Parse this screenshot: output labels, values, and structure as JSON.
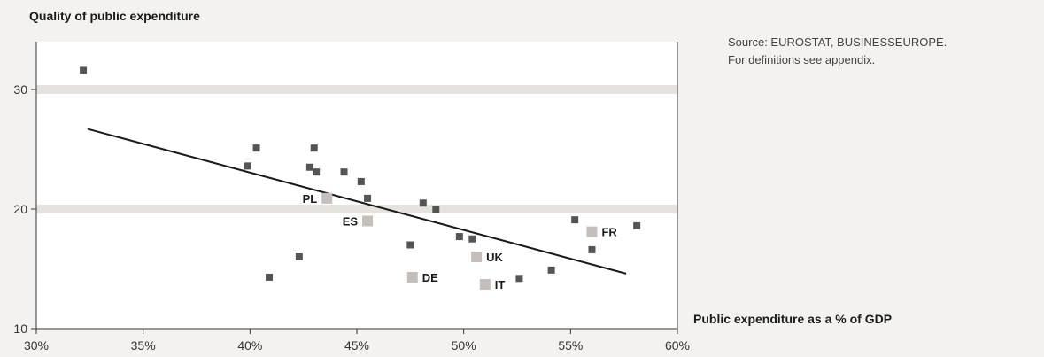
{
  "title": "Quality of public expenditure",
  "source_note": {
    "line1": "Source: EUROSTAT, BUSINESSEUROPE.",
    "line2": "For definitions see appendix."
  },
  "colors": {
    "point": "#555555",
    "highlight": "#c6bebb",
    "band": "#e6e3df",
    "trend": "#1a1a1a",
    "plot_bg": "#ffffff",
    "page_bg": "#f3f2f0"
  },
  "chart_data": {
    "type": "scatter",
    "title": "Quality of public expenditure",
    "xlabel": "Public expenditure as a % of GDP",
    "ylabel": "",
    "xlim": [
      30,
      60
    ],
    "ylim": [
      10,
      34
    ],
    "xticks": [
      "30%",
      "35%",
      "40%",
      "45%",
      "50%",
      "55%",
      "60%"
    ],
    "yticks": [
      "10",
      "20",
      "30"
    ],
    "grid": "horizontal bands at 20 and 30",
    "points": [
      {
        "x": 32.2,
        "y": 31.6
      },
      {
        "x": 39.9,
        "y": 23.6
      },
      {
        "x": 40.3,
        "y": 25.1
      },
      {
        "x": 40.9,
        "y": 14.3
      },
      {
        "x": 42.3,
        "y": 16.0
      },
      {
        "x": 42.8,
        "y": 23.5
      },
      {
        "x": 43.0,
        "y": 25.1
      },
      {
        "x": 43.1,
        "y": 23.1
      },
      {
        "x": 44.4,
        "y": 23.1
      },
      {
        "x": 45.2,
        "y": 22.3
      },
      {
        "x": 45.5,
        "y": 20.9
      },
      {
        "x": 47.5,
        "y": 17.0
      },
      {
        "x": 48.1,
        "y": 20.5
      },
      {
        "x": 48.7,
        "y": 20.0
      },
      {
        "x": 49.8,
        "y": 17.7
      },
      {
        "x": 50.4,
        "y": 17.5
      },
      {
        "x": 52.6,
        "y": 14.2
      },
      {
        "x": 54.1,
        "y": 14.9
      },
      {
        "x": 55.2,
        "y": 19.1
      },
      {
        "x": 56.0,
        "y": 16.6
      },
      {
        "x": 58.1,
        "y": 18.6
      }
    ],
    "highlighted": [
      {
        "label": "PL",
        "x": 43.6,
        "y": 20.9,
        "label_side": "left"
      },
      {
        "label": "ES",
        "x": 45.5,
        "y": 19.0,
        "label_side": "left"
      },
      {
        "label": "DE",
        "x": 47.6,
        "y": 14.3,
        "label_side": "right"
      },
      {
        "label": "UK",
        "x": 50.6,
        "y": 16.0,
        "label_side": "right"
      },
      {
        "label": "IT",
        "x": 51.0,
        "y": 13.7,
        "label_side": "right"
      },
      {
        "label": "FR",
        "x": 56.0,
        "y": 18.1,
        "label_side": "right"
      }
    ],
    "trendline": {
      "x": [
        32.4,
        57.6
      ],
      "y": [
        26.7,
        14.6
      ]
    }
  }
}
